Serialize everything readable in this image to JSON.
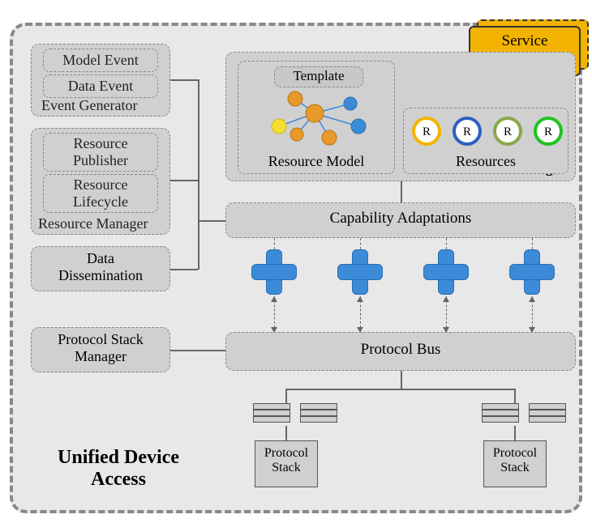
{
  "title": "Unified Device\nAccess",
  "service_endpoint": "Service\nEndpoint",
  "se_manager": {
    "title": "SE Manager",
    "template": "Template",
    "resource_model": "Resource Model",
    "resources_label": "Resources",
    "network": {
      "node_fill_yellow": "#f5dd31",
      "node_fill_orange": "#e79a2a",
      "node_fill_blue": "#3b8bd8",
      "edge_color": "#3b8bd8"
    },
    "resources": [
      {
        "ring": "#f2b400"
      },
      {
        "ring": "#2d5fbf"
      },
      {
        "ring": "#8aa84a"
      },
      {
        "ring": "#1dc41d"
      }
    ],
    "resource_letter": "R"
  },
  "left": {
    "event_generator": {
      "group": "Event Generator",
      "items": [
        "Model Event",
        "Data Event"
      ]
    },
    "resource_manager": {
      "group": "Resource Manager",
      "items": [
        "Resource\nPublisher",
        "Resource\nLifecycle"
      ]
    },
    "data_dissemination": "Data\nDissemination",
    "protocol_stack_manager": "Protocol Stack\nManager"
  },
  "capability": "Capability Adaptations",
  "protocol_bus": "Protocol Bus",
  "protocol_stack": "Protocol\nStack",
  "colors": {
    "plus": "#3b8bd8",
    "bg": "#e8e8e8",
    "box": "#d0d0d0",
    "border": "#888888",
    "svc": "#f2b400"
  },
  "type": "architecture-diagram"
}
